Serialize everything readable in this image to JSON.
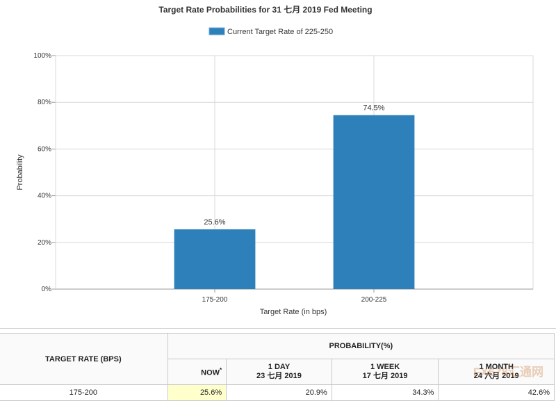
{
  "chart_data": {
    "type": "bar",
    "title": "Target Rate Probabilities for 31 七月 2019  Fed Meeting",
    "legend": "Current Target Rate of 225-250",
    "legend_placement": "top-center",
    "categories": [
      "175-200",
      "200-225"
    ],
    "values": [
      25.6,
      74.5
    ],
    "data_labels": [
      "25.6%",
      "74.5%"
    ],
    "xlabel": "Target Rate (in bps)",
    "ylabel": "Probability",
    "ylim": [
      0,
      100
    ],
    "yticks": [
      0,
      20,
      40,
      60,
      80,
      100
    ],
    "ytick_labels": [
      "0%",
      "20%",
      "40%",
      "60%",
      "80%",
      "100%"
    ],
    "grid": true,
    "bar_color": "#2e80bb"
  },
  "table": {
    "rate_header": "TARGET RATE (BPS)",
    "prob_header": "PROBABILITY(%)",
    "now_label": "NOW",
    "now_marker": "*",
    "day_label": "1 DAY",
    "day_date": "23 七月 2019",
    "week_label": "1 WEEK",
    "week_date": "17 七月 2019",
    "month_label": "1 MONTH",
    "month_date": "24 六月 2019",
    "rows": [
      {
        "rate": "175-200",
        "now": "25.6%",
        "day": "20.9%",
        "week": "34.3%",
        "month": "42.6%"
      }
    ]
  },
  "watermark": "FX678汇通网"
}
